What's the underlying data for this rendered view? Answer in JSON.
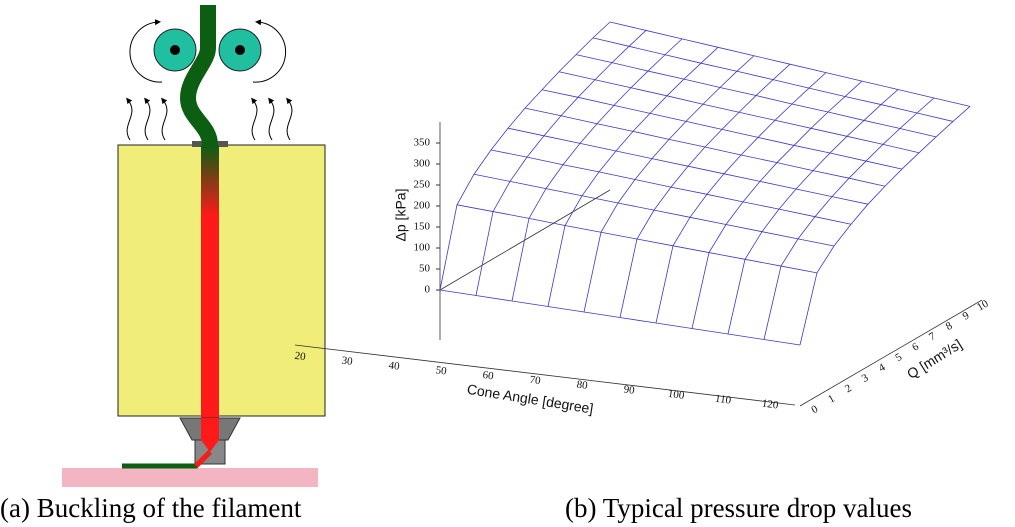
{
  "captions": [
    "(a) Buckling of the filament",
    "(b) Typical pressure drop values"
  ],
  "chart_data": {
    "type": "surface",
    "xlabel": "Cone Angle [degree]",
    "ylabel": "Q [mm³/s]",
    "zlabel": "Δp [kPa]",
    "color": "#3a3acc",
    "x": [
      20,
      30,
      40,
      50,
      60,
      70,
      80,
      90,
      100,
      110,
      120
    ],
    "y": [
      0,
      1,
      2,
      3,
      4,
      5,
      6,
      7,
      8,
      9,
      10
    ],
    "z": [
      [
        0,
        179,
        228,
        262,
        290,
        314,
        334,
        353,
        370,
        386,
        400
      ],
      [
        0,
        176,
        224,
        258,
        285,
        309,
        329,
        347,
        364,
        379,
        393
      ],
      [
        0,
        173,
        220,
        253,
        280,
        303,
        323,
        341,
        357,
        372,
        386
      ],
      [
        0,
        169,
        216,
        249,
        275,
        298,
        317,
        335,
        351,
        365,
        379
      ],
      [
        0,
        166,
        212,
        244,
        270,
        292,
        311,
        328,
        344,
        359,
        372
      ],
      [
        0,
        163,
        208,
        239,
        265,
        287,
        305,
        322,
        338,
        352,
        365
      ],
      [
        0,
        160,
        204,
        235,
        260,
        281,
        299,
        316,
        331,
        345,
        358
      ],
      [
        0,
        157,
        200,
        230,
        255,
        276,
        293,
        310,
        325,
        338,
        351
      ],
      [
        0,
        154,
        196,
        226,
        250,
        270,
        288,
        304,
        318,
        332,
        344
      ],
      [
        0,
        151,
        192,
        221,
        245,
        265,
        282,
        298,
        312,
        325,
        337
      ],
      [
        0,
        148,
        188,
        216,
        240,
        259,
        276,
        291,
        305,
        318,
        330
      ]
    ],
    "xlim": [
      20,
      120
    ],
    "ylim": [
      0,
      10
    ],
    "zlim": [
      0,
      400
    ],
    "xticks": [
      20,
      30,
      40,
      50,
      60,
      70,
      80,
      90,
      100,
      110,
      120
    ],
    "yticks": [
      0,
      1,
      2,
      3,
      4,
      5,
      6,
      7,
      8,
      9,
      10
    ],
    "zticks": [
      0,
      50,
      100,
      150,
      200,
      250,
      300,
      350
    ]
  }
}
